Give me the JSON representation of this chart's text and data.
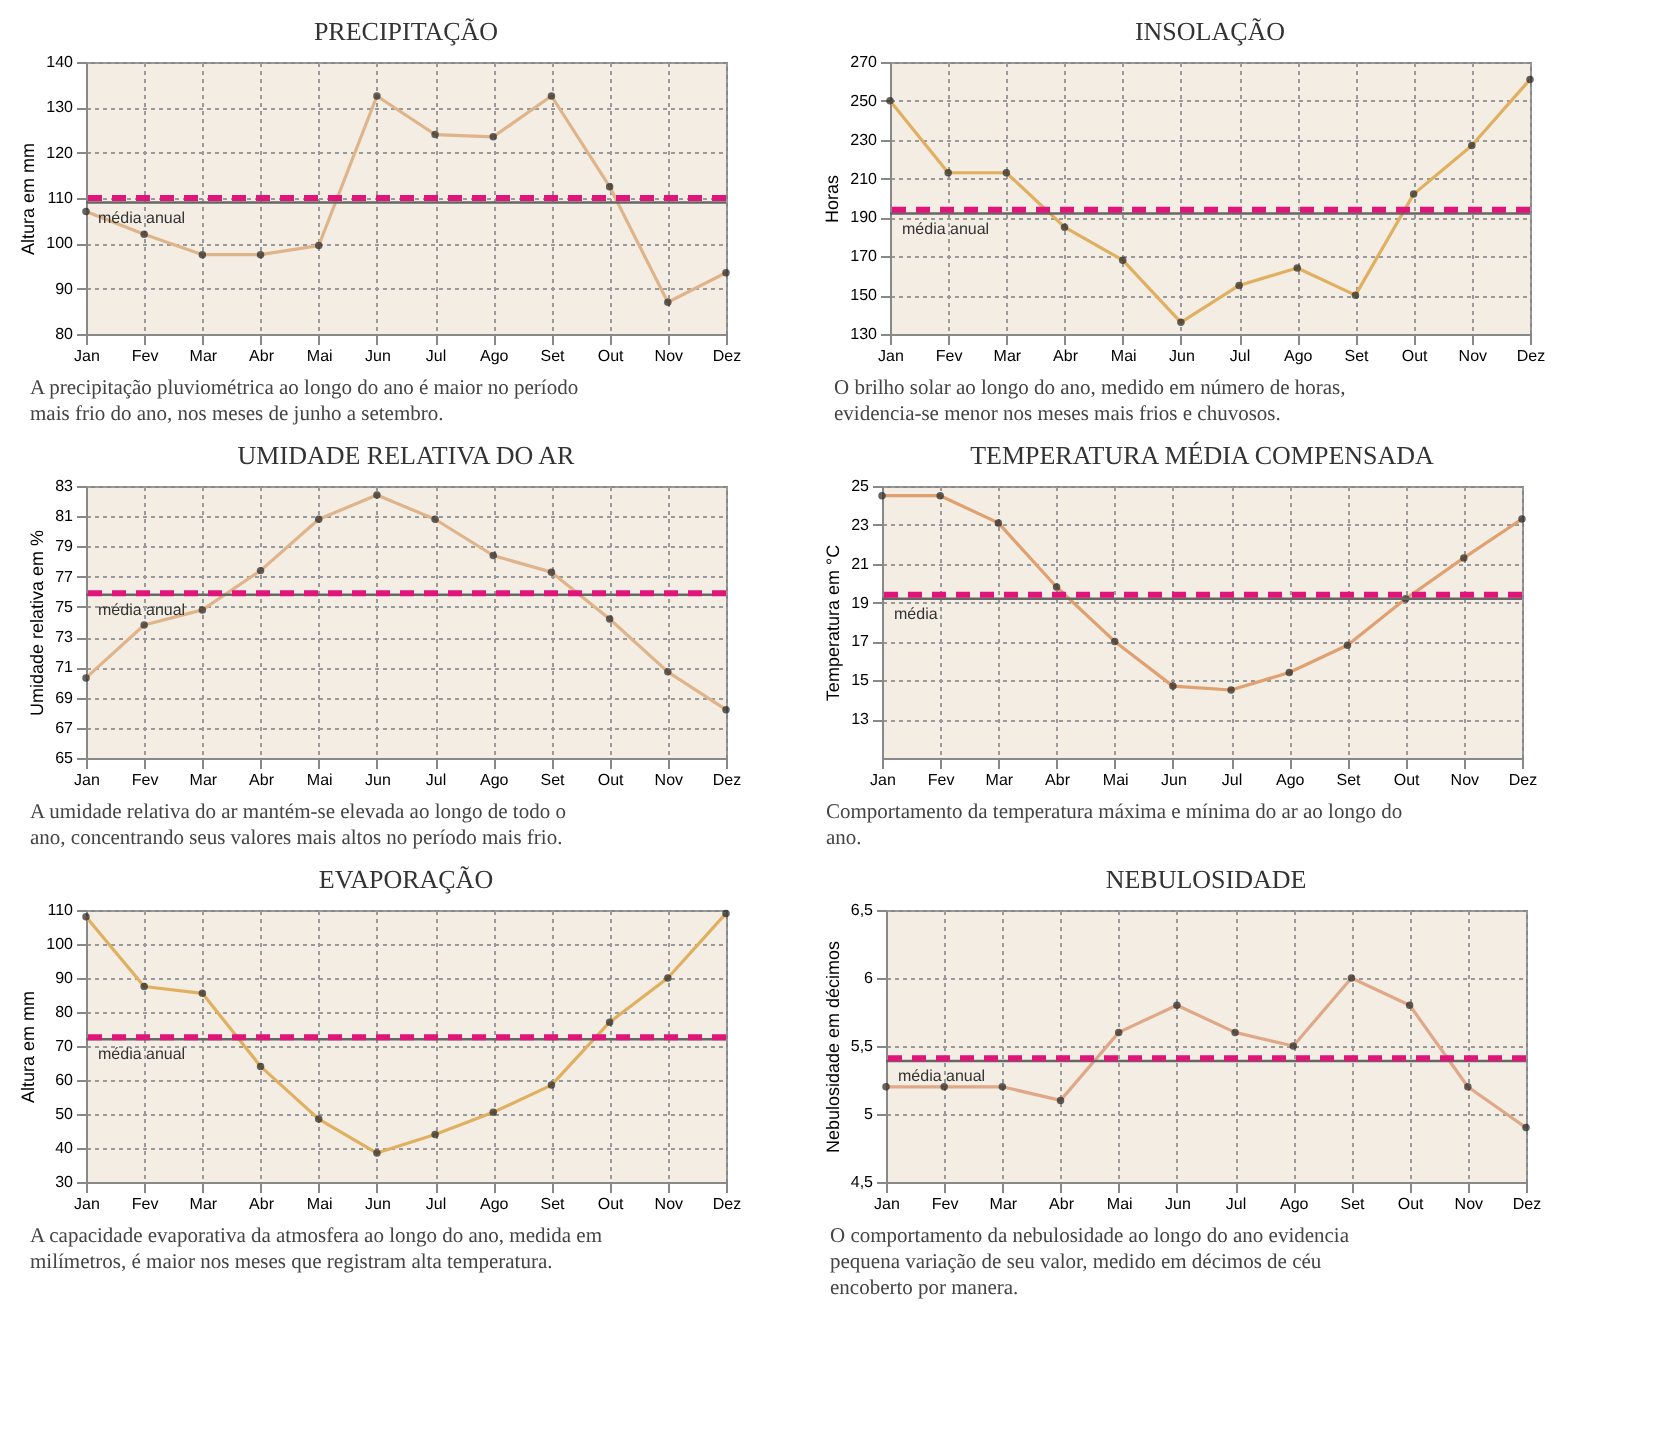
{
  "chart_data": [
    {
      "type": "line",
      "title": "PRECIPITAÇÃO",
      "ylabel": "Altura em mm",
      "categories": [
        "Jan",
        "Fev",
        "Mar",
        "Abr",
        "Mai",
        "Jun",
        "Jul",
        "Ago",
        "Set",
        "Out",
        "Nov",
        "Dez"
      ],
      "series": [
        {
          "color": "#e0b48a",
          "values": [
            107,
            102,
            97.5,
            97.5,
            99.5,
            132.5,
            124,
            123.5,
            132.5,
            112.5,
            87,
            93.5
          ]
        }
      ],
      "ylim": [
        80,
        140
      ],
      "yticks": [
        80,
        90,
        100,
        110,
        120,
        130,
        140
      ],
      "grid": true,
      "marker": "circle",
      "line_style": "solid",
      "ref_lines": [
        {
          "axis": "y",
          "value": 109,
          "label": "média anual",
          "color": "#666666",
          "line_style": "solid"
        },
        {
          "axis": "y",
          "value": 110,
          "color": "#e0157a",
          "line_style": "dashed"
        }
      ],
      "annotations": [
        "A precipitação pluviométrica ao longo do ano é maior no período mais frio do ano, nos meses de junho a setembro."
      ]
    },
    {
      "type": "line",
      "title": "INSOLAÇÃO",
      "ylabel": "Horas",
      "categories": [
        "Jan",
        "Fev",
        "Mar",
        "Abr",
        "Mai",
        "Jun",
        "Jul",
        "Ago",
        "Set",
        "Out",
        "Nov",
        "Dez"
      ],
      "series": [
        {
          "color": "#e0b060",
          "values": [
            250,
            213,
            213,
            185,
            168,
            136,
            155,
            164,
            150,
            202,
            227,
            261
          ]
        }
      ],
      "ylim": [
        130,
        270
      ],
      "yticks": [
        130,
        150,
        170,
        190,
        210,
        230,
        250,
        270
      ],
      "grid": true,
      "marker": "circle",
      "line_style": "solid",
      "ref_lines": [
        {
          "axis": "y",
          "value": 192,
          "label": "média anual",
          "color": "#666666",
          "line_style": "solid"
        },
        {
          "axis": "y",
          "value": 194,
          "color": "#e0157a",
          "line_style": "dashed"
        }
      ],
      "annotations": [
        "O brilho solar ao longo do ano, medido em número de horas, evidencia-se menor nos meses mais frios e chuvosos."
      ]
    },
    {
      "type": "line",
      "title": "UMIDADE RELATIVA DO AR",
      "ylabel": "Umidade relativa em %",
      "categories": [
        "Jan",
        "Fev",
        "Mar",
        "Abr",
        "Mai",
        "Jun",
        "Jul",
        "Ago",
        "Set",
        "Out",
        "Nov",
        "Dez"
      ],
      "series": [
        {
          "color": "#e0b48a",
          "values": [
            70.3,
            73.8,
            74.8,
            77.4,
            80.8,
            82.4,
            80.8,
            78.4,
            77.3,
            74.2,
            70.7,
            68.2
          ]
        }
      ],
      "ylim": [
        65,
        83
      ],
      "yticks": [
        65,
        67,
        69,
        71,
        73,
        75,
        77,
        79,
        81,
        83
      ],
      "grid": true,
      "marker": "circle",
      "line_style": "solid",
      "ref_lines": [
        {
          "axis": "y",
          "value": 75.8,
          "label": "média anual",
          "color": "#666666",
          "line_style": "solid"
        },
        {
          "axis": "y",
          "value": 75.9,
          "color": "#e0157a",
          "line_style": "dashed"
        }
      ],
      "annotations": [
        "A umidade relativa do ar mantém-se elevada ao longo de todo o ano, concentrando seus valores mais altos no período mais frio."
      ]
    },
    {
      "type": "line",
      "title": "TEMPERATURA MÉDIA COMPENSADA",
      "ylabel": "Temperatura em °C",
      "categories": [
        "Jan",
        "Fev",
        "Mar",
        "Abr",
        "Mai",
        "Jun",
        "Jul",
        "Ago",
        "Set",
        "Out",
        "Nov",
        "Dez"
      ],
      "series": [
        {
          "color": "#e0a070",
          "values": [
            24.5,
            24.5,
            23.1,
            19.8,
            17,
            14.7,
            14.5,
            15.4,
            16.8,
            19.2,
            21.3,
            23.3
          ]
        }
      ],
      "ylim": [
        11,
        25
      ],
      "yticks": [
        13,
        15,
        17,
        19,
        21,
        23,
        25
      ],
      "grid": true,
      "marker": "circle",
      "line_style": "solid",
      "ref_lines": [
        {
          "axis": "y",
          "value": 19.2,
          "label": "média",
          "color": "#666666",
          "line_style": "solid"
        },
        {
          "axis": "y",
          "value": 19.4,
          "color": "#e0157a",
          "line_style": "dashed"
        }
      ],
      "annotations": [
        "Comportamento da temperatura máxima e mínima do ar ao longo do ano."
      ]
    },
    {
      "type": "line",
      "title": "EVAPORAÇÃO",
      "ylabel": "Altura em mm",
      "categories": [
        "Jan",
        "Fev",
        "Mar",
        "Abr",
        "Mai",
        "Jun",
        "Jul",
        "Ago",
        "Set",
        "Out",
        "Nov",
        "Dez"
      ],
      "series": [
        {
          "color": "#e0b060",
          "values": [
            108,
            87.5,
            85.5,
            64,
            48.5,
            38.5,
            44,
            50.5,
            58.5,
            77,
            90,
            109
          ]
        }
      ],
      "ylim": [
        30,
        110
      ],
      "yticks": [
        30,
        40,
        50,
        60,
        70,
        80,
        90,
        100,
        110
      ],
      "grid": true,
      "marker": "circle",
      "line_style": "solid",
      "ref_lines": [
        {
          "axis": "y",
          "value": 72,
          "label": "média anual",
          "color": "#666666",
          "line_style": "solid"
        },
        {
          "axis": "y",
          "value": 72.6,
          "color": "#e0157a",
          "line_style": "dashed"
        }
      ],
      "annotations": [
        "A capacidade evaporativa da atmosfera ao longo do ano, medida em milímetros, é maior nos meses que registram alta temperatura."
      ]
    },
    {
      "type": "line",
      "title": "NEBULOSIDADE",
      "ylabel": "Nebulosidade em décimos",
      "categories": [
        "Jan",
        "Fev",
        "Mar",
        "Abr",
        "Mai",
        "Jun",
        "Jul",
        "Ago",
        "Set",
        "Out",
        "Nov",
        "Dez"
      ],
      "series": [
        {
          "color": "#e0a888",
          "values": [
            5.2,
            5.2,
            5.2,
            5.1,
            5.6,
            5.8,
            5.6,
            5.5,
            6.0,
            5.8,
            5.2,
            4.9
          ]
        }
      ],
      "ylim": [
        4.5,
        6.5
      ],
      "yticks": [
        {
          "value": 4.5,
          "label": "4,5"
        },
        5,
        {
          "value": 5.5,
          "label": "5,5"
        },
        6,
        {
          "value": 6.5,
          "label": "6,5"
        }
      ],
      "grid": true,
      "marker": "circle",
      "line_style": "solid",
      "ref_lines": [
        {
          "axis": "y",
          "value": 5.39,
          "label": "média anual",
          "color": "#666666",
          "line_style": "solid"
        },
        {
          "axis": "y",
          "value": 5.41,
          "color": "#e0157a",
          "line_style": "dashed"
        }
      ],
      "annotations": [
        "O comportamento da nebulosidade ao longo do ano evidencia pequena variação de seu valor, medido em décimos de céu encoberto por manera."
      ]
    }
  ]
}
